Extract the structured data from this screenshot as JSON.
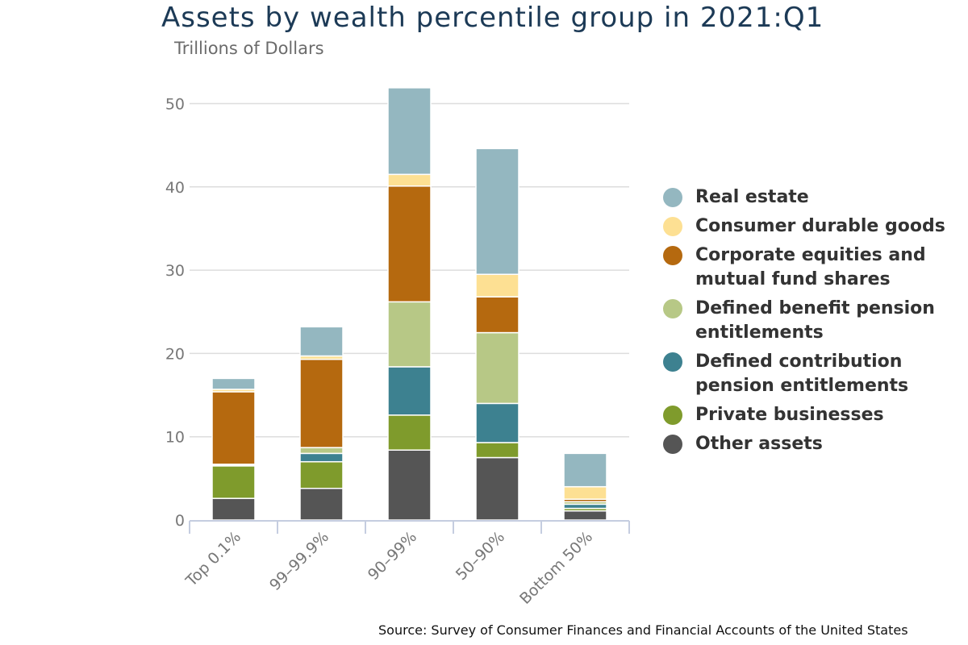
{
  "chart_data": {
    "type": "bar",
    "stacked": true,
    "title": "Assets by wealth percentile group in 2021:Q1",
    "subtitle": "Trillions of Dollars",
    "source": "Source: Survey of Consumer Finances and Financial Accounts of the United States",
    "categories": [
      "Top 0.1%",
      "99–99.9%",
      "90–99%",
      "50–90%",
      "Bottom 50%"
    ],
    "ylim": [
      0,
      52
    ],
    "yticks": [
      0,
      10,
      20,
      30,
      40,
      50
    ],
    "grid": true,
    "legend_position": "right",
    "series": [
      {
        "name": "Other assets",
        "color": "#555555",
        "values": [
          2.6,
          3.8,
          8.4,
          7.5,
          1.1
        ]
      },
      {
        "name": "Private businesses",
        "color": "#7f9b2c",
        "values": [
          3.9,
          3.2,
          4.2,
          1.8,
          0.3
        ]
      },
      {
        "name": "Defined contribution pension entitlements",
        "color": "#3d8190",
        "values": [
          0.1,
          1.0,
          5.8,
          4.7,
          0.5
        ]
      },
      {
        "name": "Defined benefit pension entitlements",
        "color": "#b7c886",
        "values": [
          0.1,
          0.7,
          7.8,
          8.5,
          0.3
        ]
      },
      {
        "name": "Corporate equities and mutual fund shares",
        "color": "#b5690f",
        "values": [
          8.7,
          10.6,
          13.9,
          4.3,
          0.3
        ]
      },
      {
        "name": "Consumer durable goods",
        "color": "#fde093",
        "values": [
          0.3,
          0.4,
          1.4,
          2.7,
          1.5
        ]
      },
      {
        "name": "Real estate",
        "color": "#94b7c0",
        "values": [
          1.3,
          3.5,
          10.4,
          15.1,
          4.0
        ]
      }
    ],
    "legend_order": [
      "Real estate",
      "Consumer durable goods",
      "Corporate equities and\nmutual fund shares",
      "Defined benefit pension\nentitlements",
      "Defined contribution\npension entitlements",
      "Private businesses",
      "Other assets"
    ]
  }
}
